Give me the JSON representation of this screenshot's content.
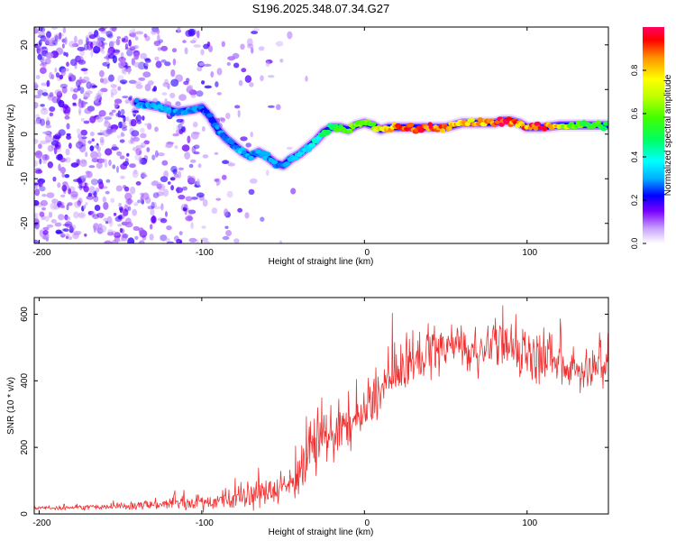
{
  "title": "S196.2025.348.07.34.G27",
  "chart_data": [
    {
      "type": "heatmap",
      "title": "S196.2025.348.07.34.G27",
      "xlabel": "Height of straight line (km)",
      "ylabel": "Frequency (Hz)",
      "xlim": [
        -203,
        150
      ],
      "ylim": [
        -24.5,
        24
      ],
      "xticks": [
        "-200",
        "-100",
        "0",
        "100"
      ],
      "yticks": [
        "20",
        "10",
        "0",
        "-10",
        "-20"
      ],
      "colorbar": {
        "label": "Normalized spectral amplitude",
        "range": [
          0,
          1
        ],
        "ticks": [
          "0.0",
          "0.2",
          "0.4",
          "0.6",
          "0.8"
        ],
        "colors": [
          "#ffffff",
          "#c8a0ff",
          "#7a00ff",
          "#0000ff",
          "#00b0ff",
          "#00ffff",
          "#00ff60",
          "#40ff00",
          "#c0ff00",
          "#ffff00",
          "#ff9000",
          "#ff0000",
          "#ff0060"
        ]
      },
      "ridge": {
        "name": "dominant frequency track",
        "x": [
          -140,
          -125,
          -115,
          -105,
          -100,
          -95,
          -90,
          -85,
          -80,
          -75,
          -70,
          -65,
          -60,
          -55,
          -50,
          -45,
          -40,
          -35,
          -30,
          -25,
          -20,
          -15,
          -10,
          -5,
          0,
          5,
          10,
          15,
          20,
          30,
          40,
          50,
          60,
          70,
          80,
          85,
          90,
          95,
          100,
          110,
          120,
          130,
          150
        ],
        "y": [
          7,
          6,
          5,
          5.5,
          6,
          4,
          1,
          -1,
          -2.5,
          -4,
          -5,
          -4,
          -5,
          -6.5,
          -7,
          -5.5,
          -4.5,
          -3,
          -1.5,
          0.5,
          1.5,
          1.5,
          1,
          2,
          2.5,
          2,
          1,
          1.5,
          1.5,
          1.5,
          1.5,
          1.5,
          2.5,
          2.5,
          2.5,
          3,
          3,
          2.5,
          1.5,
          1.5,
          2,
          2,
          2
        ],
        "amplitude": [
          0.3,
          0.3,
          0.3,
          0.3,
          0.25,
          0.25,
          0.3,
          0.3,
          0.3,
          0.35,
          0.3,
          0.3,
          0.3,
          0.3,
          0.25,
          0.35,
          0.35,
          0.35,
          0.4,
          0.5,
          0.5,
          0.55,
          0.6,
          0.6,
          0.6,
          0.65,
          0.75,
          0.8,
          0.9,
          0.95,
          0.95,
          0.9,
          0.8,
          0.85,
          0.9,
          0.95,
          0.95,
          0.85,
          0.9,
          0.95,
          0.75,
          0.6,
          0.55
        ]
      }
    },
    {
      "type": "line",
      "xlabel": "Height of straight line (km)",
      "ylabel": "SNR (10 * v/v)",
      "xlim": [
        -203,
        150
      ],
      "ylim": [
        0,
        650
      ],
      "xticks": [
        "-200",
        "-100",
        "0",
        "100"
      ],
      "yticks": [
        "0",
        "200",
        "400",
        "600"
      ],
      "series": [
        {
          "name": "SNR",
          "color": "#f03030",
          "x": [
            -203,
            -190,
            -180,
            -170,
            -160,
            -150,
            -140,
            -130,
            -120,
            -110,
            -100,
            -90,
            -80,
            -70,
            -60,
            -50,
            -45,
            -40,
            -35,
            -30,
            -25,
            -20,
            -15,
            -10,
            -5,
            0,
            5,
            10,
            15,
            20,
            25,
            30,
            35,
            40,
            45,
            50,
            55,
            60,
            65,
            70,
            75,
            80,
            85,
            90,
            95,
            100,
            105,
            110,
            115,
            120,
            125,
            130,
            135,
            140,
            145,
            150
          ],
          "y": [
            18,
            18,
            20,
            20,
            20,
            22,
            25,
            28,
            30,
            32,
            35,
            38,
            45,
            55,
            65,
            80,
            95,
            120,
            170,
            200,
            225,
            245,
            255,
            265,
            275,
            300,
            330,
            370,
            400,
            420,
            440,
            455,
            470,
            480,
            490,
            495,
            500,
            505,
            490,
            480,
            500,
            505,
            500,
            495,
            490,
            480,
            470,
            460,
            450,
            450,
            445,
            440,
            430,
            430,
            440,
            445
          ],
          "variability": [
            10,
            10,
            10,
            10,
            12,
            14,
            18,
            22,
            25,
            28,
            30,
            35,
            45,
            55,
            60,
            70,
            80,
            95,
            110,
            115,
            120,
            120,
            115,
            110,
            110,
            105,
            100,
            100,
            100,
            100,
            100,
            100,
            100,
            100,
            100,
            100,
            100,
            100,
            100,
            100,
            100,
            100,
            100,
            100,
            100,
            100,
            100,
            100,
            100,
            100,
            100,
            100,
            100,
            100,
            100,
            100
          ]
        }
      ]
    }
  ]
}
